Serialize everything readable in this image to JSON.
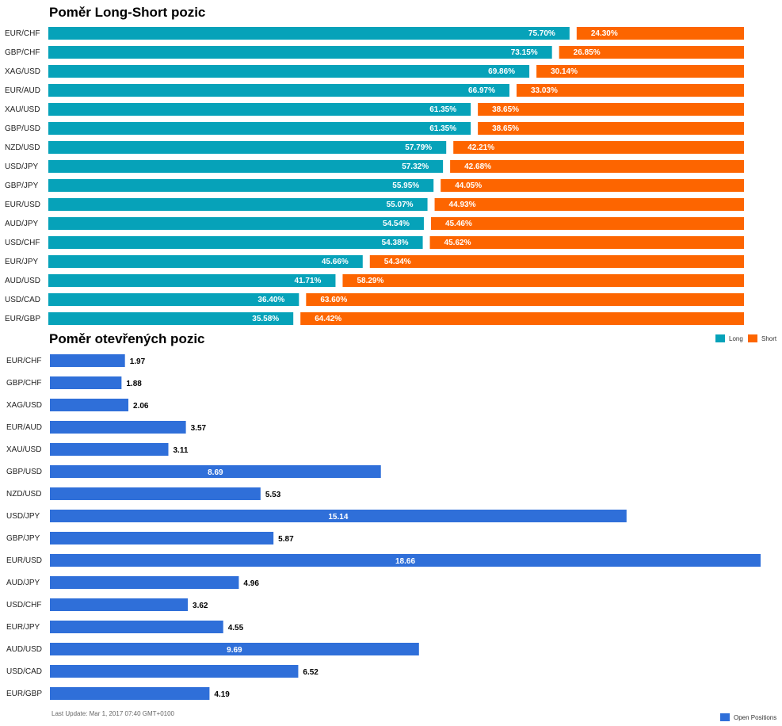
{
  "titles": {
    "ratio": "Poměr Long-Short pozic",
    "open": "Poměr otevřených pozic"
  },
  "colors": {
    "long": "#06a2b9",
    "short": "#fd6500",
    "open": "#2f6fd9"
  },
  "legend": {
    "long": "Long",
    "short": "Short",
    "open": "Open Positions"
  },
  "footer": "Last Update: Mar 1, 2017 07:40 GMT+0100",
  "chart_data": [
    {
      "type": "bar",
      "stacked": true,
      "orientation": "horizontal",
      "title": "Poměr Long-Short pozic",
      "categories": [
        "EUR/CHF",
        "GBP/CHF",
        "XAG/USD",
        "EUR/AUD",
        "XAU/USD",
        "GBP/USD",
        "NZD/USD",
        "USD/JPY",
        "GBP/JPY",
        "EUR/USD",
        "AUD/JPY",
        "USD/CHF",
        "EUR/JPY",
        "AUD/USD",
        "USD/CAD",
        "EUR/GBP"
      ],
      "series": [
        {
          "name": "Long",
          "values": [
            75.7,
            73.15,
            69.86,
            66.97,
            61.35,
            61.35,
            57.79,
            57.32,
            55.95,
            55.07,
            54.54,
            54.38,
            45.66,
            41.71,
            36.4,
            35.58
          ],
          "labels": [
            "75.70%",
            "73.15%",
            "69.86%",
            "66.97%",
            "61.35%",
            "61.35%",
            "57.79%",
            "57.32%",
            "55.95%",
            "55.07%",
            "54.54%",
            "54.38%",
            "45.66%",
            "41.71%",
            "36.40%",
            "35.58%"
          ]
        },
        {
          "name": "Short",
          "values": [
            24.3,
            26.85,
            30.14,
            33.03,
            38.65,
            38.65,
            42.21,
            42.68,
            44.05,
            44.93,
            45.46,
            45.62,
            54.34,
            58.29,
            63.6,
            64.42
          ],
          "labels": [
            "24.30%",
            "26.85%",
            "30.14%",
            "33.03%",
            "38.65%",
            "38.65%",
            "42.21%",
            "42.68%",
            "44.05%",
            "44.93%",
            "45.46%",
            "45.62%",
            "54.34%",
            "58.29%",
            "63.60%",
            "64.42%"
          ]
        }
      ],
      "xlim": [
        0,
        100
      ],
      "legend_position": "top-right"
    },
    {
      "type": "bar",
      "orientation": "horizontal",
      "title": "Poměr otevřených pozic",
      "categories": [
        "EUR/CHF",
        "GBP/CHF",
        "XAG/USD",
        "EUR/AUD",
        "XAU/USD",
        "GBP/USD",
        "NZD/USD",
        "USD/JPY",
        "GBP/JPY",
        "EUR/USD",
        "AUD/JPY",
        "USD/CHF",
        "EUR/JPY",
        "AUD/USD",
        "USD/CAD",
        "EUR/GBP"
      ],
      "series": [
        {
          "name": "Open Positions",
          "values": [
            1.97,
            1.88,
            2.06,
            3.57,
            3.11,
            8.69,
            5.53,
            15.14,
            5.87,
            18.66,
            4.96,
            3.62,
            4.55,
            9.69,
            6.52,
            4.19
          ],
          "labels": [
            "1.97",
            "1.88",
            "2.06",
            "3.57",
            "3.11",
            "8.69",
            "5.53",
            "15.14",
            "5.87",
            "18.66",
            "4.96",
            "3.62",
            "4.55",
            "9.69",
            "6.52",
            "4.19"
          ]
        }
      ],
      "xlim": [
        0,
        18.66
      ],
      "legend_position": "bottom-right"
    }
  ]
}
